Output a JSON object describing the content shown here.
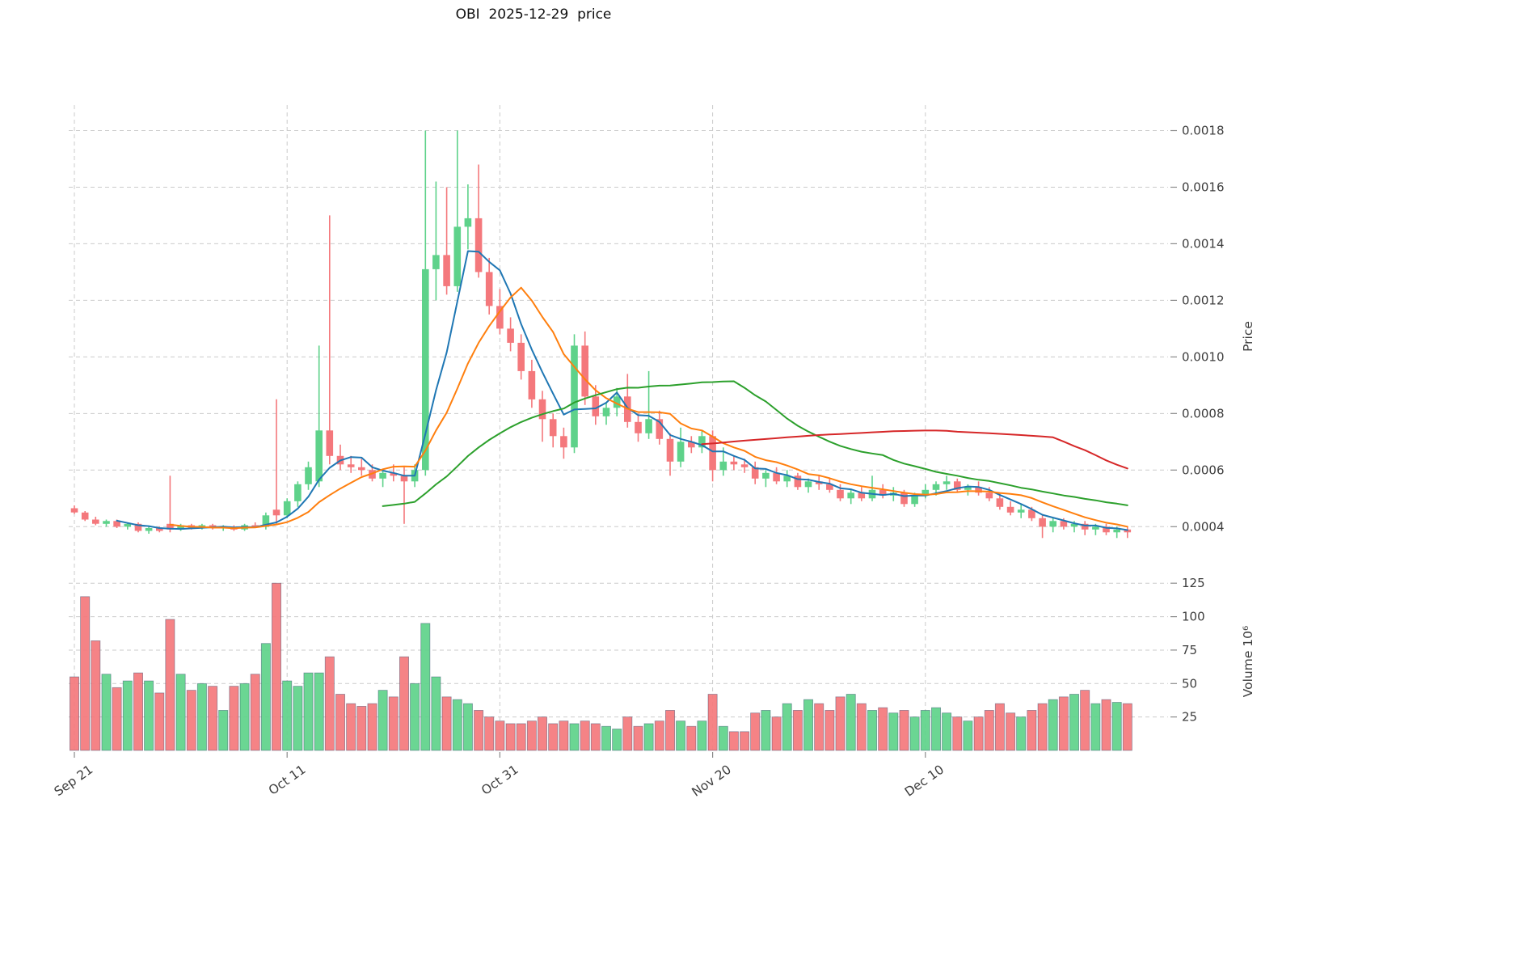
{
  "chart_data": {
    "type": "candlestick",
    "title": "OBI  2025-12-29  price",
    "n_candles": 100,
    "x_ticks": [
      {
        "index": 0,
        "label": "Sep 21"
      },
      {
        "index": 20,
        "label": "Oct 11"
      },
      {
        "index": 40,
        "label": "Oct 31"
      },
      {
        "index": 60,
        "label": "Nov 20"
      },
      {
        "index": 80,
        "label": "Dec 10"
      }
    ],
    "price_axis": {
      "label": "Price",
      "side": "right",
      "grid": true,
      "ticks": [
        0.0004,
        0.0006,
        0.0008,
        0.001,
        0.0012,
        0.0014,
        0.0016,
        0.0018
      ],
      "ylim": [
        0.000255,
        0.00189
      ]
    },
    "volume_axis": {
      "label": "Volume  10⁶",
      "side": "right",
      "grid": true,
      "ticks": [
        25,
        50,
        75,
        100,
        125
      ],
      "ylim": [
        0,
        133
      ],
      "unit": 1000000
    },
    "moving_averages": [
      {
        "name": "SMA5",
        "period": 5,
        "color": "#1f77b4"
      },
      {
        "name": "SMA10",
        "period": 10,
        "color": "#ff7f0e"
      },
      {
        "name": "SMA30",
        "period": 30,
        "color": "#2ca02c"
      },
      {
        "name": "SMA60",
        "period": 60,
        "color": "#d62728"
      }
    ],
    "colors": {
      "up": "#5ed28a",
      "down": "#f4787c",
      "grid": "#cbcbcb",
      "text": "#3d3d3d",
      "title": "#101010",
      "tick_mark": "#8a8a8a",
      "volume_bar_edge": "rgba(35,55,95,0.45)",
      "background": "#ffffff"
    },
    "candles": {
      "open": [
        0.000465,
        0.00045,
        0.000425,
        0.00041,
        0.00042,
        0.0004,
        0.00041,
        0.000385,
        0.000395,
        0.00041,
        0.00039,
        0.000405,
        0.000395,
        0.000405,
        0.000395,
        0.0004,
        0.00039,
        0.000405,
        0.0004,
        0.00046,
        0.00044,
        0.00049,
        0.00055,
        0.00056,
        0.00074,
        0.00065,
        0.00062,
        0.00061,
        0.0006,
        0.00057,
        0.00059,
        0.00058,
        0.00056,
        0.0006,
        0.00131,
        0.00136,
        0.00125,
        0.00146,
        0.00149,
        0.0013,
        0.00118,
        0.0011,
        0.00105,
        0.00095,
        0.00085,
        0.00078,
        0.00072,
        0.00068,
        0.00104,
        0.00086,
        0.00079,
        0.00082,
        0.00086,
        0.00077,
        0.00073,
        0.00078,
        0.00071,
        0.00063,
        0.0007,
        0.00068,
        0.00072,
        0.0006,
        0.00063,
        0.00062,
        0.00061,
        0.00057,
        0.00059,
        0.00056,
        0.00058,
        0.00054,
        0.00056,
        0.00055,
        0.00053,
        0.0005,
        0.00052,
        0.0005,
        0.00053,
        0.00051,
        0.00052,
        0.00048,
        0.00051,
        0.00053,
        0.00055,
        0.00056,
        0.00053,
        0.00054,
        0.00052,
        0.0005,
        0.00047,
        0.00045,
        0.00046,
        0.00043,
        0.0004,
        0.00042,
        0.0004,
        0.00041,
        0.00039,
        0.0004,
        0.00038,
        0.00039
      ],
      "high": [
        0.000475,
        0.000455,
        0.000435,
        0.000425,
        0.000425,
        0.000415,
        0.000415,
        0.0004,
        0.0004,
        0.00058,
        0.00041,
        0.00041,
        0.00041,
        0.00041,
        0.000405,
        0.000405,
        0.00041,
        0.000415,
        0.00045,
        0.00085,
        0.0005,
        0.00056,
        0.00063,
        0.00104,
        0.0015,
        0.00069,
        0.00065,
        0.00064,
        0.00062,
        0.0006,
        0.00062,
        0.00061,
        0.00062,
        0.0018,
        0.00162,
        0.0016,
        0.0018,
        0.00161,
        0.00168,
        0.00135,
        0.00124,
        0.00114,
        0.00108,
        0.00099,
        0.00088,
        0.0008,
        0.00075,
        0.00108,
        0.00109,
        0.0009,
        0.00084,
        0.00089,
        0.00094,
        0.0008,
        0.00095,
        0.00081,
        0.00073,
        0.00075,
        0.00072,
        0.00074,
        0.00074,
        0.00068,
        0.00065,
        0.00064,
        0.00063,
        0.0006,
        0.00061,
        0.0006,
        0.00059,
        0.00057,
        0.00058,
        0.00057,
        0.00055,
        0.00053,
        0.00054,
        0.00058,
        0.00055,
        0.00054,
        0.00053,
        0.00052,
        0.00055,
        0.00056,
        0.00058,
        0.00057,
        0.00055,
        0.00056,
        0.00054,
        0.00052,
        0.00049,
        0.00048,
        0.00047,
        0.00044,
        0.00043,
        0.00043,
        0.00042,
        0.00042,
        0.00041,
        0.00041,
        0.0004,
        0.0004
      ],
      "low": [
        0.000445,
        0.00042,
        0.000405,
        0.0004,
        0.000395,
        0.00039,
        0.00038,
        0.000375,
        0.00038,
        0.00038,
        0.000385,
        0.00039,
        0.00039,
        0.00039,
        0.000385,
        0.000385,
        0.000385,
        0.000395,
        0.00039,
        0.00041,
        0.00043,
        0.00047,
        0.00053,
        0.00054,
        0.00062,
        0.0006,
        0.00059,
        0.00058,
        0.00056,
        0.00054,
        0.00056,
        0.00041,
        0.00054,
        0.00058,
        0.0012,
        0.00122,
        0.00123,
        0.00138,
        0.00128,
        0.00115,
        0.00108,
        0.00102,
        0.00092,
        0.00082,
        0.0007,
        0.00068,
        0.00064,
        0.00066,
        0.00083,
        0.00076,
        0.00076,
        0.00079,
        0.00075,
        0.0007,
        0.00071,
        0.00069,
        0.00058,
        0.00061,
        0.00066,
        0.00066,
        0.00056,
        0.00058,
        0.0006,
        0.00059,
        0.00055,
        0.00054,
        0.00055,
        0.00054,
        0.00053,
        0.00052,
        0.00053,
        0.00052,
        0.00049,
        0.00048,
        0.00049,
        0.00049,
        0.0005,
        0.00049,
        0.00047,
        0.00047,
        0.0005,
        0.00051,
        0.00053,
        0.00052,
        0.00051,
        0.00051,
        0.00049,
        0.00046,
        0.00044,
        0.00043,
        0.00042,
        0.00036,
        0.00038,
        0.00039,
        0.00038,
        0.00037,
        0.00037,
        0.00037,
        0.00036,
        0.00036
      ],
      "close": [
        0.00045,
        0.000425,
        0.00041,
        0.00042,
        0.0004,
        0.00041,
        0.000385,
        0.000395,
        0.000385,
        0.00039,
        0.000405,
        0.000395,
        0.000405,
        0.000395,
        0.0004,
        0.00039,
        0.000405,
        0.0004,
        0.00044,
        0.00044,
        0.00049,
        0.00055,
        0.00061,
        0.00074,
        0.00065,
        0.00062,
        0.00061,
        0.0006,
        0.00057,
        0.00059,
        0.00058,
        0.00056,
        0.0006,
        0.00131,
        0.00136,
        0.00125,
        0.00146,
        0.00149,
        0.0013,
        0.00118,
        0.0011,
        0.00105,
        0.00095,
        0.00085,
        0.00078,
        0.00072,
        0.00068,
        0.00104,
        0.00086,
        0.00079,
        0.00082,
        0.00086,
        0.00077,
        0.00073,
        0.00078,
        0.00071,
        0.00063,
        0.0007,
        0.00068,
        0.00072,
        0.0006,
        0.00063,
        0.00062,
        0.00061,
        0.00057,
        0.00059,
        0.00056,
        0.00058,
        0.00054,
        0.00056,
        0.00055,
        0.00053,
        0.0005,
        0.00052,
        0.0005,
        0.00053,
        0.00051,
        0.00052,
        0.00048,
        0.00051,
        0.00053,
        0.00055,
        0.00056,
        0.00053,
        0.00054,
        0.00052,
        0.0005,
        0.00047,
        0.00045,
        0.00046,
        0.00043,
        0.0004,
        0.00042,
        0.0004,
        0.00041,
        0.00039,
        0.0004,
        0.00038,
        0.00039,
        0.00038
      ],
      "volume_millions": [
        55,
        115,
        82,
        57,
        47,
        52,
        58,
        52,
        43,
        98,
        57,
        45,
        50,
        48,
        30,
        48,
        50,
        57,
        80,
        125,
        52,
        48,
        58,
        58,
        70,
        42,
        35,
        33,
        35,
        45,
        40,
        70,
        50,
        95,
        55,
        40,
        38,
        35,
        30,
        25,
        22,
        20,
        20,
        22,
        25,
        20,
        22,
        20,
        22,
        20,
        18,
        16,
        25,
        18,
        20,
        22,
        30,
        22,
        18,
        22,
        42,
        18,
        14,
        14,
        28,
        30,
        25,
        35,
        30,
        38,
        35,
        30,
        40,
        42,
        35,
        30,
        32,
        28,
        30,
        25,
        30,
        32,
        28,
        25,
        22,
        25,
        30,
        35,
        28,
        25,
        30,
        35,
        38,
        40,
        42,
        45,
        35,
        38,
        36,
        35
      ]
    }
  }
}
